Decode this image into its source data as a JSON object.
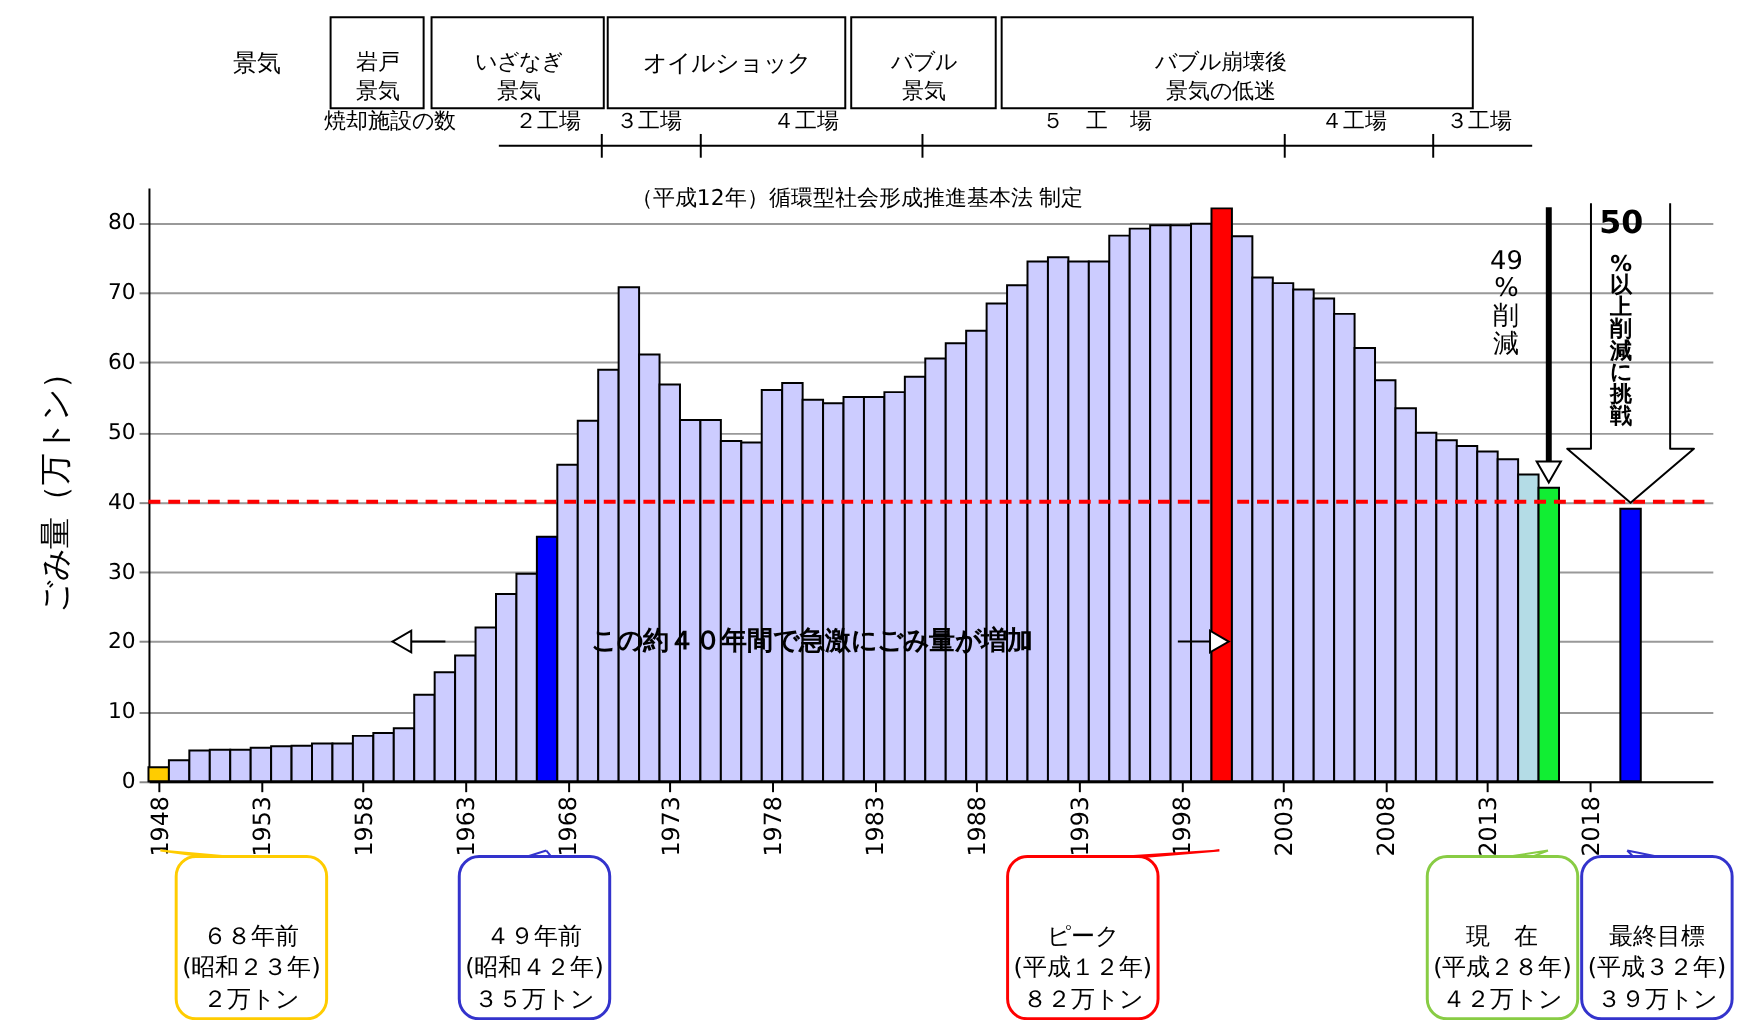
{
  "chart_data": {
    "type": "bar",
    "ylabel": "ごみ量（万トン）",
    "x": [
      1948,
      1949,
      1950,
      1951,
      1952,
      1953,
      1954,
      1955,
      1956,
      1957,
      1958,
      1959,
      1960,
      1961,
      1962,
      1963,
      1964,
      1965,
      1966,
      1967,
      1968,
      1969,
      1970,
      1971,
      1972,
      1973,
      1974,
      1975,
      1976,
      1977,
      1978,
      1979,
      1980,
      1981,
      1982,
      1983,
      1984,
      1985,
      1986,
      1987,
      1988,
      1989,
      1990,
      1991,
      1992,
      1993,
      1994,
      1995,
      1996,
      1997,
      1998,
      1999,
      2000,
      2001,
      2002,
      2003,
      2004,
      2005,
      2006,
      2007,
      2008,
      2009,
      2010,
      2011,
      2012,
      2013,
      2014,
      2015,
      2016,
      2020
    ],
    "values": [
      2,
      3.0,
      4.4,
      4.5,
      4.5,
      4.8,
      5.0,
      5.1,
      5.4,
      5.4,
      6.5,
      6.9,
      7.6,
      12.4,
      15.6,
      18,
      22,
      26.8,
      29.7,
      35,
      45.3,
      51.6,
      58.9,
      70.7,
      61.1,
      56.8,
      51.7,
      51.7,
      48.7,
      48.5,
      56,
      57,
      54.6,
      54.1,
      55,
      55,
      55.7,
      57.9,
      60.5,
      62.7,
      64.5,
      68.4,
      71,
      74.4,
      75,
      74.4,
      74.4,
      78.1,
      79.1,
      79.6,
      79.6,
      79.8,
      82,
      78,
      72.1,
      71.3,
      70.4,
      69.1,
      66.9,
      62,
      57.4,
      53.4,
      49.9,
      48.8,
      48,
      47.2,
      46.1,
      43.9,
      42,
      39
    ],
    "colors": [
      "#ffcc00",
      "#ccccff",
      "#ccccff",
      "#ccccff",
      "#ccccff",
      "#ccccff",
      "#ccccff",
      "#ccccff",
      "#ccccff",
      "#ccccff",
      "#ccccff",
      "#ccccff",
      "#ccccff",
      "#ccccff",
      "#ccccff",
      "#ccccff",
      "#ccccff",
      "#ccccff",
      "#ccccff",
      "#0000ff",
      "#ccccff",
      "#ccccff",
      "#ccccff",
      "#ccccff",
      "#ccccff",
      "#ccccff",
      "#ccccff",
      "#ccccff",
      "#ccccff",
      "#ccccff",
      "#ccccff",
      "#ccccff",
      "#ccccff",
      "#ccccff",
      "#ccccff",
      "#ccccff",
      "#ccccff",
      "#ccccff",
      "#ccccff",
      "#ccccff",
      "#ccccff",
      "#ccccff",
      "#ccccff",
      "#ccccff",
      "#ccccff",
      "#ccccff",
      "#ccccff",
      "#ccccff",
      "#ccccff",
      "#ccccff",
      "#ccccff",
      "#ccccff",
      "#ff0000",
      "#ccccff",
      "#ccccff",
      "#ccccff",
      "#ccccff",
      "#ccccff",
      "#ccccff",
      "#ccccff",
      "#ccccff",
      "#ccccff",
      "#ccccff",
      "#ccccff",
      "#ccccff",
      "#ccccff",
      "#ccccff",
      "#b4dce6",
      "#11ee33",
      "#0000ff"
    ],
    "xlim": [
      1947.5,
      2024
    ],
    "xticks": [
      1948,
      1953,
      1958,
      1963,
      1968,
      1973,
      1978,
      1983,
      1988,
      1993,
      1998,
      2003,
      2008,
      2013,
      2018
    ],
    "ylim": [
      0,
      85
    ],
    "yticks": [
      0,
      10,
      20,
      30,
      40,
      50,
      60,
      70,
      80
    ],
    "grid": "y",
    "ref_lines": [
      {
        "axis": "y",
        "value": 40,
        "color": "#ff0000",
        "line_style": "dashed"
      }
    ],
    "annotations": [
      "景気",
      "岩戸景気",
      "いざなぎ景気",
      "オイルショック",
      "バブル景気",
      "バブル崩壊後景気の低迷",
      "焼却施設の数",
      "２工場",
      "３工場",
      "４工場",
      "５　工　場",
      "４工場",
      "３工場",
      "（平成12年）循環型社会形成推進基本法 制定",
      "この約４０年間で急激にごみ量が増加",
      "49%削減",
      "50%以上削減に挑戦",
      "６８年前(昭和２３年)２万トン",
      "４９年前(昭和４２年)３５万トン",
      "ピーク(平成１２年)８２万トン",
      "現　在(平成２８年)４２万トン",
      "最終目標(平成３２年)３９万トン"
    ]
  }
}
